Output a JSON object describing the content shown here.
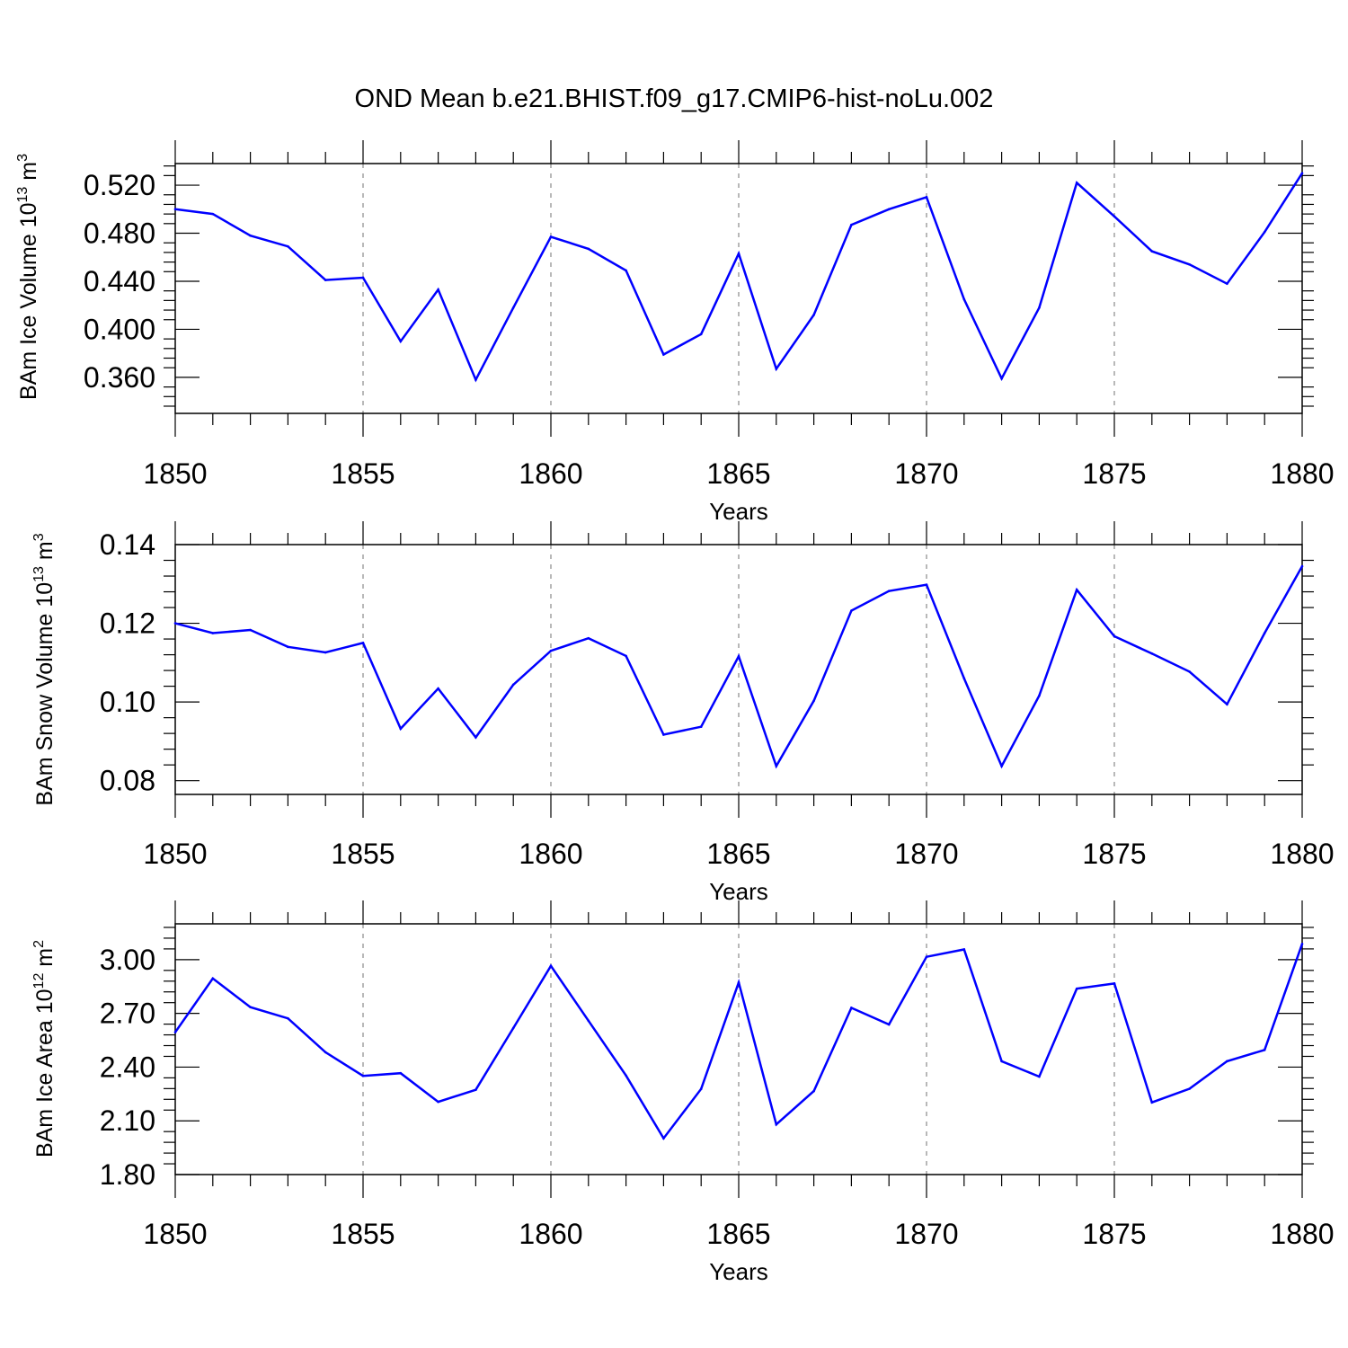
{
  "figure": {
    "title": "OND Mean b.e21.BHIST.f09_g17.CMIP6-hist-noLu.002"
  },
  "colors": {
    "series": "#0000ff",
    "axes": "#000000",
    "grid": "#8a8a8a"
  },
  "chart_data": [
    {
      "type": "line",
      "title": "OND Mean b.e21.BHIST.f09_g17.CMIP6-hist-noLu.002",
      "ylabel": {
        "main": "BAm Ice Volume 10",
        "sup1": "13",
        "unit": " m",
        "sup2": "3"
      },
      "xlabel": "Years",
      "xlim": [
        1850,
        1880
      ],
      "ylim": [
        0.33,
        0.538
      ],
      "x_ticks": [
        1850,
        1855,
        1860,
        1865,
        1870,
        1875,
        1880
      ],
      "x_tick_labels": [
        "1850",
        "1855",
        "1860",
        "1865",
        "1870",
        "1875",
        "1880"
      ],
      "y_ticks": [
        0.36,
        0.4,
        0.44,
        0.48,
        0.52
      ],
      "y_tick_labels": [
        "0.360",
        "0.400",
        "0.440",
        "0.480",
        "0.520"
      ],
      "y_minor_step": 0.008,
      "grid": "x-dashed",
      "series": [
        {
          "name": "BAm Ice Volume",
          "x": [
            1850,
            1851,
            1852,
            1853,
            1854,
            1855,
            1856,
            1857,
            1858,
            1859,
            1860,
            1861,
            1862,
            1863,
            1864,
            1865,
            1866,
            1867,
            1868,
            1869,
            1870,
            1871,
            1872,
            1873,
            1874,
            1875,
            1876,
            1877,
            1878,
            1879,
            1880
          ],
          "values": [
            0.5,
            0.496,
            0.478,
            0.469,
            0.441,
            0.443,
            0.39,
            0.433,
            0.358,
            0.418,
            0.477,
            0.467,
            0.449,
            0.379,
            0.396,
            0.463,
            0.367,
            0.412,
            0.487,
            0.5,
            0.51,
            0.425,
            0.359,
            0.418,
            0.522,
            0.494,
            0.465,
            0.454,
            0.438,
            0.481,
            0.53
          ]
        }
      ]
    },
    {
      "type": "line",
      "ylabel": {
        "main": "BAm Snow Volume 10",
        "sup1": "13",
        "unit": " m",
        "sup2": "3"
      },
      "xlabel": "Years",
      "xlim": [
        1850,
        1880
      ],
      "ylim": [
        0.0765,
        0.14
      ],
      "x_ticks": [
        1850,
        1855,
        1860,
        1865,
        1870,
        1875,
        1880
      ],
      "x_tick_labels": [
        "1850",
        "1855",
        "1860",
        "1865",
        "1870",
        "1875",
        "1880"
      ],
      "y_ticks": [
        0.08,
        0.1,
        0.12,
        0.14
      ],
      "y_tick_labels": [
        "0.08",
        "0.10",
        "0.12",
        "0.14"
      ],
      "y_minor_step": 0.004,
      "grid": "x-dashed",
      "series": [
        {
          "name": "BAm Snow Volume",
          "x": [
            1850,
            1851,
            1852,
            1853,
            1854,
            1855,
            1856,
            1857,
            1858,
            1859,
            1860,
            1861,
            1862,
            1863,
            1864,
            1865,
            1866,
            1867,
            1868,
            1869,
            1870,
            1871,
            1872,
            1873,
            1874,
            1875,
            1876,
            1877,
            1878,
            1879,
            1880
          ],
          "values": [
            0.12,
            0.1175,
            0.1183,
            0.114,
            0.1126,
            0.115,
            0.0932,
            0.1034,
            0.091,
            0.1044,
            0.113,
            0.1162,
            0.1117,
            0.0917,
            0.0937,
            0.1116,
            0.0837,
            0.1003,
            0.1232,
            0.1282,
            0.1298,
            0.106,
            0.0837,
            0.1016,
            0.1285,
            0.1167,
            0.1123,
            0.1077,
            0.0994,
            0.1175,
            0.1345
          ]
        }
      ]
    },
    {
      "type": "line",
      "ylabel": {
        "main": "BAm Ice Area 10",
        "sup1": "12",
        "unit": " m",
        "sup2": "2"
      },
      "xlabel": "Years",
      "xlim": [
        1850,
        1880
      ],
      "ylim": [
        1.8,
        3.2
      ],
      "x_ticks": [
        1850,
        1855,
        1860,
        1865,
        1870,
        1875,
        1880
      ],
      "x_tick_labels": [
        "1850",
        "1855",
        "1860",
        "1865",
        "1870",
        "1875",
        "1880"
      ],
      "y_ticks": [
        1.8,
        2.1,
        2.4,
        2.7,
        3.0
      ],
      "y_tick_labels": [
        "1.80",
        "2.10",
        "2.40",
        "2.70",
        "3.00"
      ],
      "y_minor_step": 0.06,
      "grid": "x-dashed",
      "series": [
        {
          "name": "BAm Ice Area",
          "x": [
            1850,
            1851,
            1852,
            1853,
            1854,
            1855,
            1856,
            1857,
            1858,
            1859,
            1860,
            1861,
            1862,
            1863,
            1864,
            1865,
            1866,
            1867,
            1868,
            1869,
            1870,
            1871,
            1872,
            1873,
            1874,
            1875,
            1876,
            1877,
            1878,
            1879,
            1880
          ],
          "values": [
            2.595,
            2.895,
            2.735,
            2.672,
            2.483,
            2.351,
            2.366,
            2.206,
            2.273,
            2.618,
            2.965,
            2.659,
            2.353,
            2.002,
            2.278,
            2.873,
            2.08,
            2.266,
            2.731,
            2.638,
            3.016,
            3.057,
            2.433,
            2.347,
            2.838,
            2.867,
            2.203,
            2.279,
            2.433,
            2.496,
            3.088
          ]
        }
      ]
    }
  ]
}
